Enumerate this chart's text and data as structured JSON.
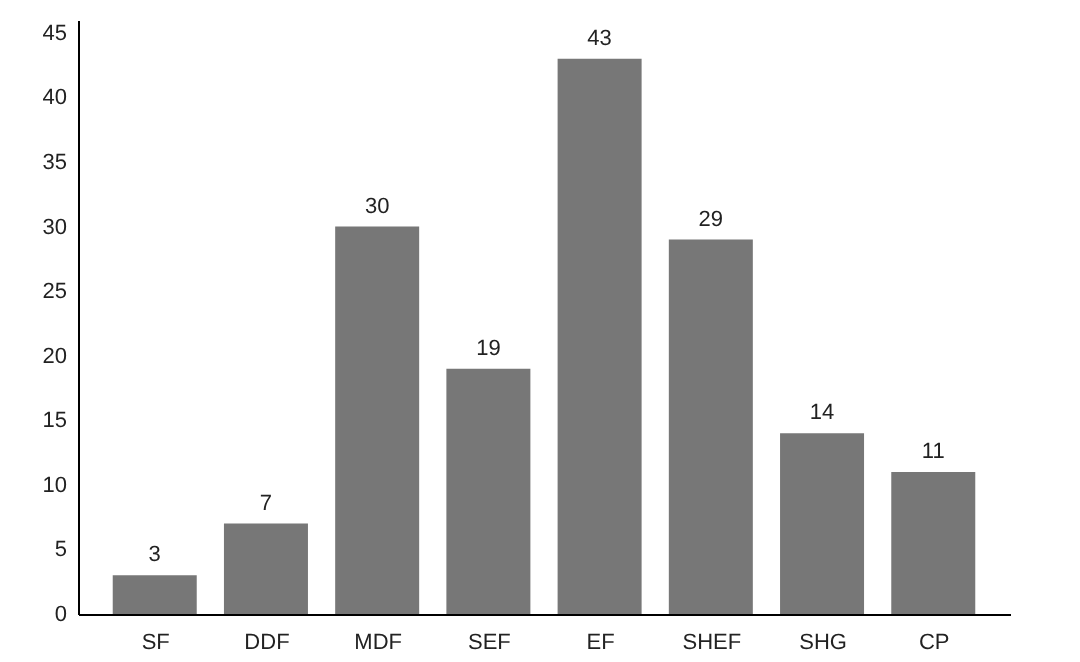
{
  "chart_data": {
    "type": "bar",
    "categories": [
      "SF",
      "DDF",
      "MDF",
      "SEF",
      "EF",
      "SHEF",
      "SHG",
      "CP"
    ],
    "values": [
      3,
      7,
      30,
      19,
      43,
      29,
      14,
      11
    ],
    "color": "#777777",
    "ylim": [
      0,
      46
    ],
    "yticks": [
      0,
      5,
      10,
      15,
      20,
      25,
      30,
      35,
      40,
      45
    ],
    "grid": false,
    "data_labels": true
  }
}
